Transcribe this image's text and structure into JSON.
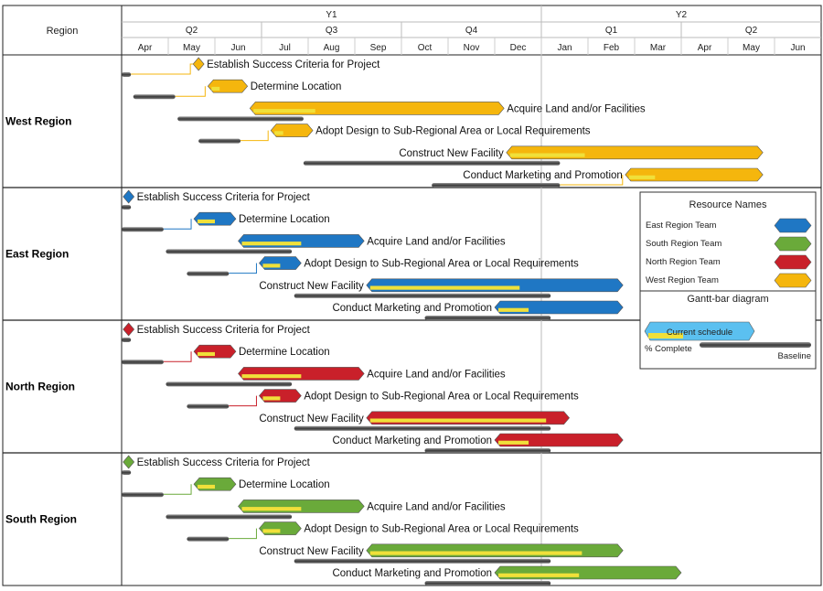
{
  "chart_data": {
    "type": "gantt",
    "header": {
      "region_column": "Region",
      "years": [
        "Y1",
        "Y2"
      ],
      "quarters": [
        "Q2",
        "Q3",
        "Q4",
        "Q1",
        "Q2"
      ],
      "months": [
        "Apr",
        "May",
        "Jun",
        "Jul",
        "Aug",
        "Sep",
        "Oct",
        "Nov",
        "Dec",
        "Jan",
        "Feb",
        "Mar",
        "Apr",
        "May",
        "Jun"
      ]
    },
    "colors": {
      "East Region Team": "#1f77c4",
      "South Region Team": "#6aaa3a",
      "North Region Team": "#c9202a",
      "West Region Team": "#f5b60d",
      "progress": "#f0e03a",
      "baseline": "#555555",
      "legend_current": "#5bc0f0"
    },
    "regions": [
      {
        "name": "West Region",
        "team": "West Region Team",
        "tasks": [
          {
            "name": "Establish Success Criteria for Project",
            "milestone": true,
            "start": 1.65,
            "end": 1.65,
            "progress": 0,
            "baseline_start": 0.0,
            "baseline_end": 0.2,
            "label_side": "right"
          },
          {
            "name": "Determine Location",
            "start": 1.85,
            "end": 2.7,
            "progress": 0.25,
            "baseline_start": 0.25,
            "baseline_end": 1.15,
            "label_side": "right"
          },
          {
            "name": "Acquire Land and/or Facilities",
            "start": 2.75,
            "end": 8.2,
            "progress": 0.25,
            "baseline_start": 1.2,
            "baseline_end": 3.9,
            "label_side": "right"
          },
          {
            "name": "Adopt Design to Sub-Regional Area or Local Requirements",
            "start": 3.2,
            "end": 4.1,
            "progress": 0.25,
            "baseline_start": 1.65,
            "baseline_end": 2.55,
            "label_side": "right"
          },
          {
            "name": "Construct New Facility",
            "start": 8.25,
            "end": 13.75,
            "progress": 0.3,
            "baseline_start": 3.9,
            "baseline_end": 9.4,
            "label_side": "left"
          },
          {
            "name": "Conduct Marketing and Promotion",
            "start": 10.8,
            "end": 13.75,
            "progress": 0.2,
            "baseline_start": 6.65,
            "baseline_end": 9.4,
            "label_side": "left"
          }
        ]
      },
      {
        "name": "East Region",
        "team": "East Region Team",
        "tasks": [
          {
            "name": "Establish Success Criteria for Project",
            "milestone": true,
            "start": 0.15,
            "end": 0.15,
            "progress": 0,
            "baseline_start": 0.0,
            "baseline_end": 0.2,
            "label_side": "right"
          },
          {
            "name": "Determine Location",
            "start": 1.55,
            "end": 2.45,
            "progress": 0.5,
            "baseline_start": 0.0,
            "baseline_end": 0.9,
            "label_side": "right"
          },
          {
            "name": "Acquire Land and/or Facilities",
            "start": 2.5,
            "end": 5.2,
            "progress": 0.5,
            "baseline_start": 0.95,
            "baseline_end": 3.65,
            "label_side": "right"
          },
          {
            "name": "Adopt Design to Sub-Regional Area or Local Requirements",
            "start": 2.95,
            "end": 3.85,
            "progress": 0.5,
            "baseline_start": 1.4,
            "baseline_end": 2.3,
            "label_side": "right"
          },
          {
            "name": "Construct New Facility",
            "start": 5.25,
            "end": 10.75,
            "progress": 0.6,
            "baseline_start": 3.7,
            "baseline_end": 9.2,
            "label_side": "left"
          },
          {
            "name": "Conduct Marketing and Promotion",
            "start": 8.0,
            "end": 10.75,
            "progress": 0.25,
            "baseline_start": 6.5,
            "baseline_end": 9.2,
            "label_side": "left"
          }
        ]
      },
      {
        "name": "North Region",
        "team": "North Region Team",
        "tasks": [
          {
            "name": "Establish Success Criteria for Project",
            "milestone": true,
            "start": 0.15,
            "end": 0.15,
            "progress": 0,
            "baseline_start": 0.0,
            "baseline_end": 0.2,
            "label_side": "right"
          },
          {
            "name": "Determine Location",
            "start": 1.55,
            "end": 2.45,
            "progress": 0.5,
            "baseline_start": 0.0,
            "baseline_end": 0.9,
            "label_side": "right"
          },
          {
            "name": "Acquire Land and/or Facilities",
            "start": 2.5,
            "end": 5.2,
            "progress": 0.5,
            "baseline_start": 0.95,
            "baseline_end": 3.65,
            "label_side": "right"
          },
          {
            "name": "Adopt Design to Sub-Regional Area or Local Requirements",
            "start": 2.95,
            "end": 3.85,
            "progress": 0.5,
            "baseline_start": 1.4,
            "baseline_end": 2.3,
            "label_side": "right"
          },
          {
            "name": "Construct New Facility",
            "start": 5.25,
            "end": 9.6,
            "progress": 0.9,
            "baseline_start": 3.7,
            "baseline_end": 9.2,
            "label_side": "left"
          },
          {
            "name": "Conduct Marketing and Promotion",
            "start": 8.0,
            "end": 10.75,
            "progress": 0.25,
            "baseline_start": 6.5,
            "baseline_end": 9.2,
            "label_side": "left"
          }
        ]
      },
      {
        "name": "South Region",
        "team": "South Region Team",
        "tasks": [
          {
            "name": "Establish Success Criteria for Project",
            "milestone": true,
            "start": 0.15,
            "end": 0.15,
            "progress": 0,
            "baseline_start": 0.0,
            "baseline_end": 0.2,
            "label_side": "right"
          },
          {
            "name": "Determine Location",
            "start": 1.55,
            "end": 2.45,
            "progress": 0.5,
            "baseline_start": 0.0,
            "baseline_end": 0.9,
            "label_side": "right"
          },
          {
            "name": "Acquire Land and/or Facilities",
            "start": 2.5,
            "end": 5.2,
            "progress": 0.5,
            "baseline_start": 0.95,
            "baseline_end": 3.65,
            "label_side": "right"
          },
          {
            "name": "Adopt Design to Sub-Regional Area or Local Requirements",
            "start": 2.95,
            "end": 3.85,
            "progress": 0.5,
            "baseline_start": 1.4,
            "baseline_end": 2.3,
            "label_side": "right"
          },
          {
            "name": "Construct New Facility",
            "start": 5.25,
            "end": 10.75,
            "progress": 0.85,
            "baseline_start": 3.7,
            "baseline_end": 9.2,
            "label_side": "left"
          },
          {
            "name": "Conduct Marketing and Promotion",
            "start": 8.0,
            "end": 12.0,
            "progress": 0.45,
            "baseline_start": 6.5,
            "baseline_end": 9.2,
            "label_side": "left"
          }
        ]
      }
    ],
    "legend": {
      "title": "Resource Names",
      "items": [
        "East Region Team",
        "South Region Team",
        "North Region Team",
        "West Region Team"
      ],
      "diagram_title": "Gantt-bar diagram",
      "current_label": "Current schedule",
      "complete_label": "% Complete",
      "baseline_label": "Baseline"
    }
  }
}
